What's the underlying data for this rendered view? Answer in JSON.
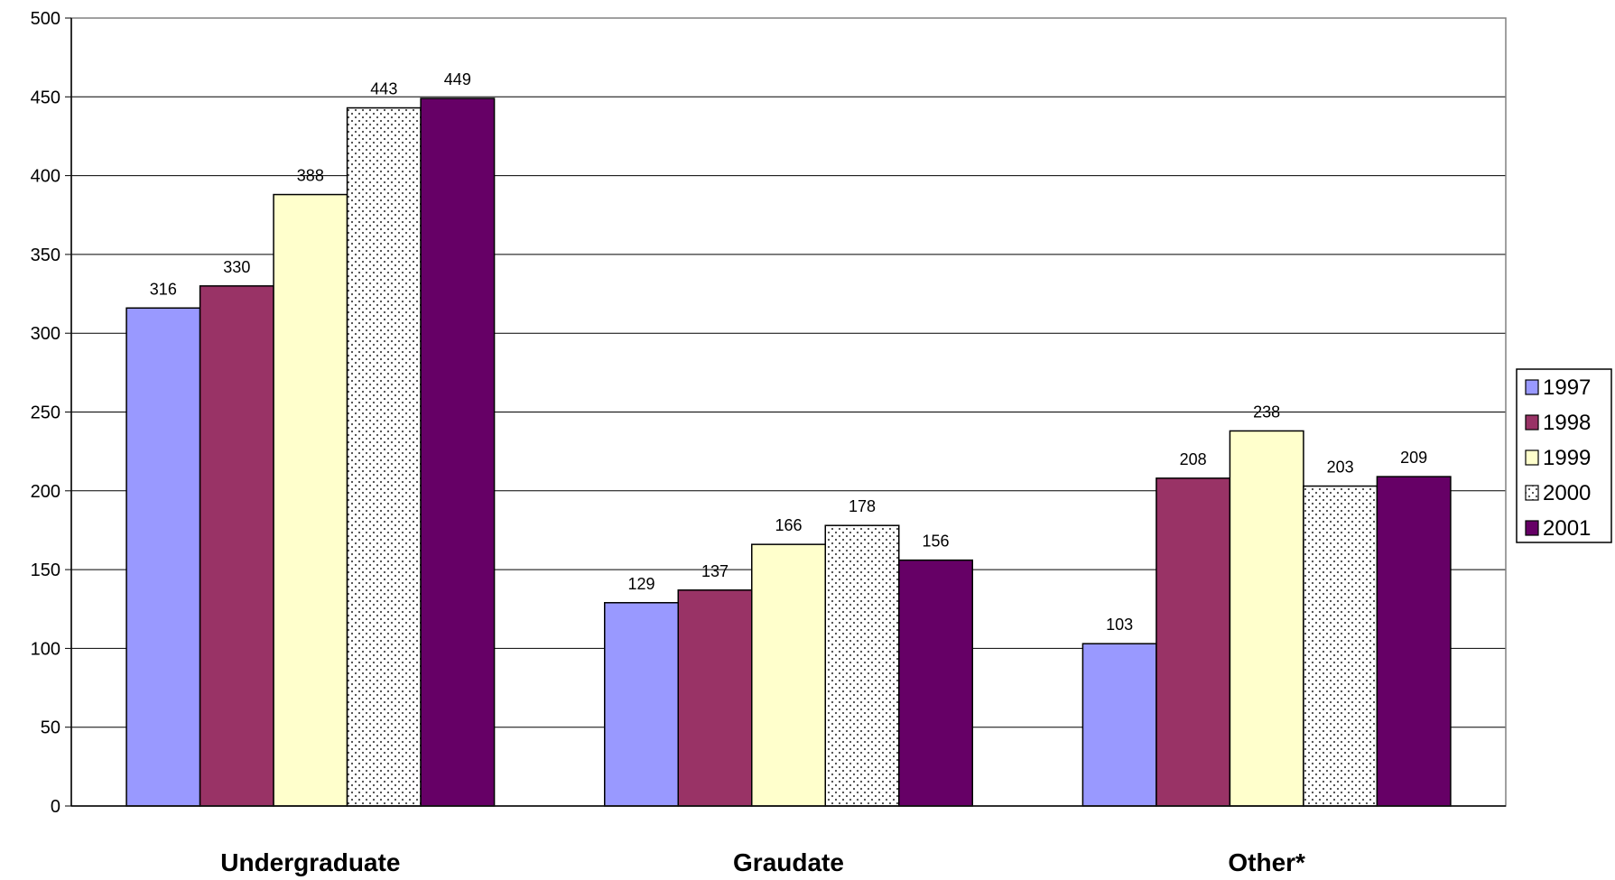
{
  "chart_data": {
    "type": "bar",
    "categories": [
      "Undergraduate",
      "Graudate",
      "Other*"
    ],
    "series": [
      {
        "name": "1997",
        "values": [
          316,
          129,
          103
        ],
        "color": "#9999ff",
        "pattern": "solid"
      },
      {
        "name": "1998",
        "values": [
          330,
          137,
          208
        ],
        "color": "#993366",
        "pattern": "solid"
      },
      {
        "name": "1999",
        "values": [
          388,
          166,
          238
        ],
        "color": "#ffffcc",
        "pattern": "solid"
      },
      {
        "name": "2000",
        "values": [
          443,
          178,
          203
        ],
        "color": "#ffffff",
        "pattern": "dotted"
      },
      {
        "name": "2001",
        "values": [
          449,
          156,
          209
        ],
        "color": "#660066",
        "pattern": "solid"
      }
    ],
    "yticks": [
      0,
      50,
      100,
      150,
      200,
      250,
      300,
      350,
      400,
      450,
      500
    ],
    "ylim": [
      0,
      500
    ],
    "title": "",
    "xlabel": "",
    "ylabel": "",
    "grid": true,
    "legend": "right",
    "data_labels": true
  }
}
